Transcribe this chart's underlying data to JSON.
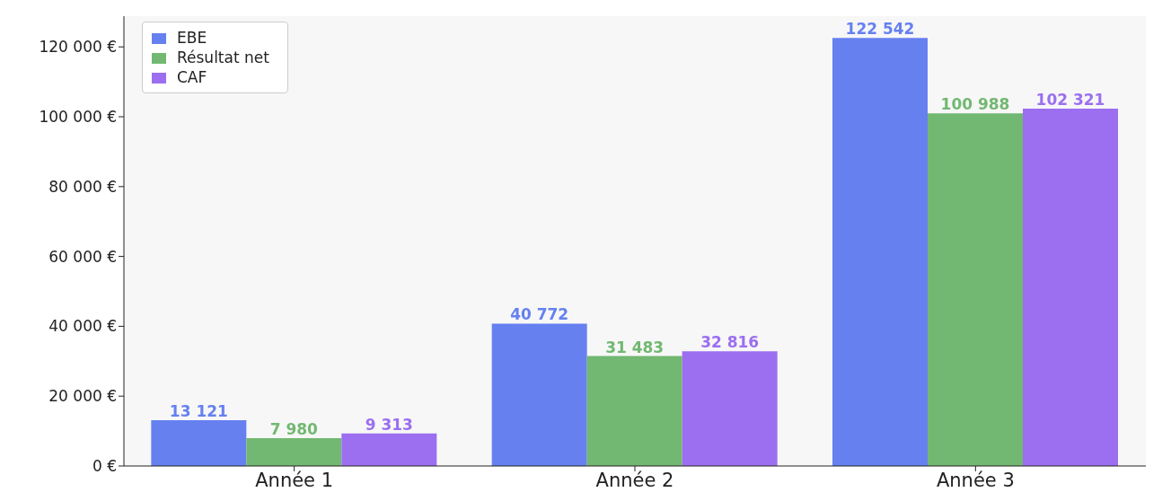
{
  "chart_data": {
    "type": "bar",
    "categories": [
      "Année 1",
      "Année 2",
      "Année 3"
    ],
    "series": [
      {
        "name": "EBE",
        "color": "#6680f0",
        "values": [
          13121,
          40772,
          122542
        ],
        "value_labels": [
          "13 121",
          "40 772",
          "122 542"
        ]
      },
      {
        "name": "Résultat net",
        "color": "#72b872",
        "values": [
          7980,
          31483,
          100988
        ],
        "value_labels": [
          "7 980",
          "31 483",
          "100 988"
        ]
      },
      {
        "name": "CAF",
        "color": "#9b6ff0",
        "values": [
          9313,
          32816,
          102321
        ],
        "value_labels": [
          "9 313",
          "32 816",
          "102 321"
        ]
      }
    ],
    "ylim": [
      0,
      128800
    ],
    "yticks": [
      {
        "value": 0,
        "label": "0 €"
      },
      {
        "value": 20000,
        "label": "20 000 €"
      },
      {
        "value": 40000,
        "label": "40 000 €"
      },
      {
        "value": 60000,
        "label": "60 000 €"
      },
      {
        "value": 80000,
        "label": "80 000 €"
      },
      {
        "value": 100000,
        "label": "100 000 €"
      },
      {
        "value": 120000,
        "label": "120 000 €"
      }
    ],
    "grid": false,
    "legend": "top left"
  }
}
